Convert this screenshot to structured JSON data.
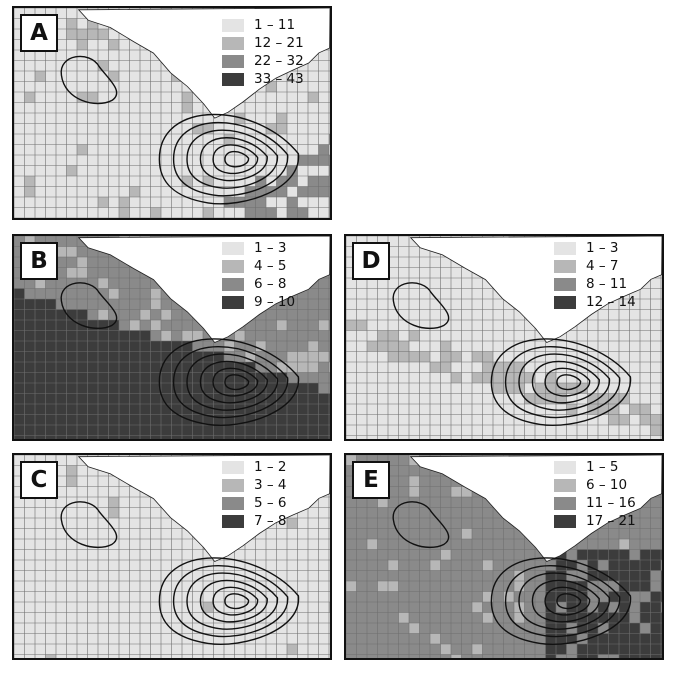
{
  "colors": {
    "shade1": "#e4e4e4",
    "shade2": "#b7b7b7",
    "shade3": "#8a8a8a",
    "shade4": "#3c3c3c",
    "grid": "#6f6f6f",
    "contour": "#111111"
  },
  "panels": [
    {
      "id": "A",
      "label": "A",
      "legend": [
        "1 – 11",
        "12 – 21",
        "22 – 32",
        "33 – 43"
      ]
    },
    {
      "id": "B",
      "label": "B",
      "legend": [
        "1 – 3",
        "4 – 5",
        "6 – 8",
        "9 – 10"
      ]
    },
    {
      "id": "C",
      "label": "C",
      "legend": [
        "1 – 2",
        "3 – 4",
        "5 – 6",
        "7 – 8"
      ]
    },
    {
      "id": "D",
      "label": "D",
      "legend": [
        "1 – 3",
        "4 – 7",
        "8 – 11",
        "12 – 14"
      ]
    },
    {
      "id": "E",
      "label": "E",
      "legend": [
        "1 – 5",
        "6 – 10",
        "11 – 16",
        "17 – 21"
      ]
    }
  ]
}
